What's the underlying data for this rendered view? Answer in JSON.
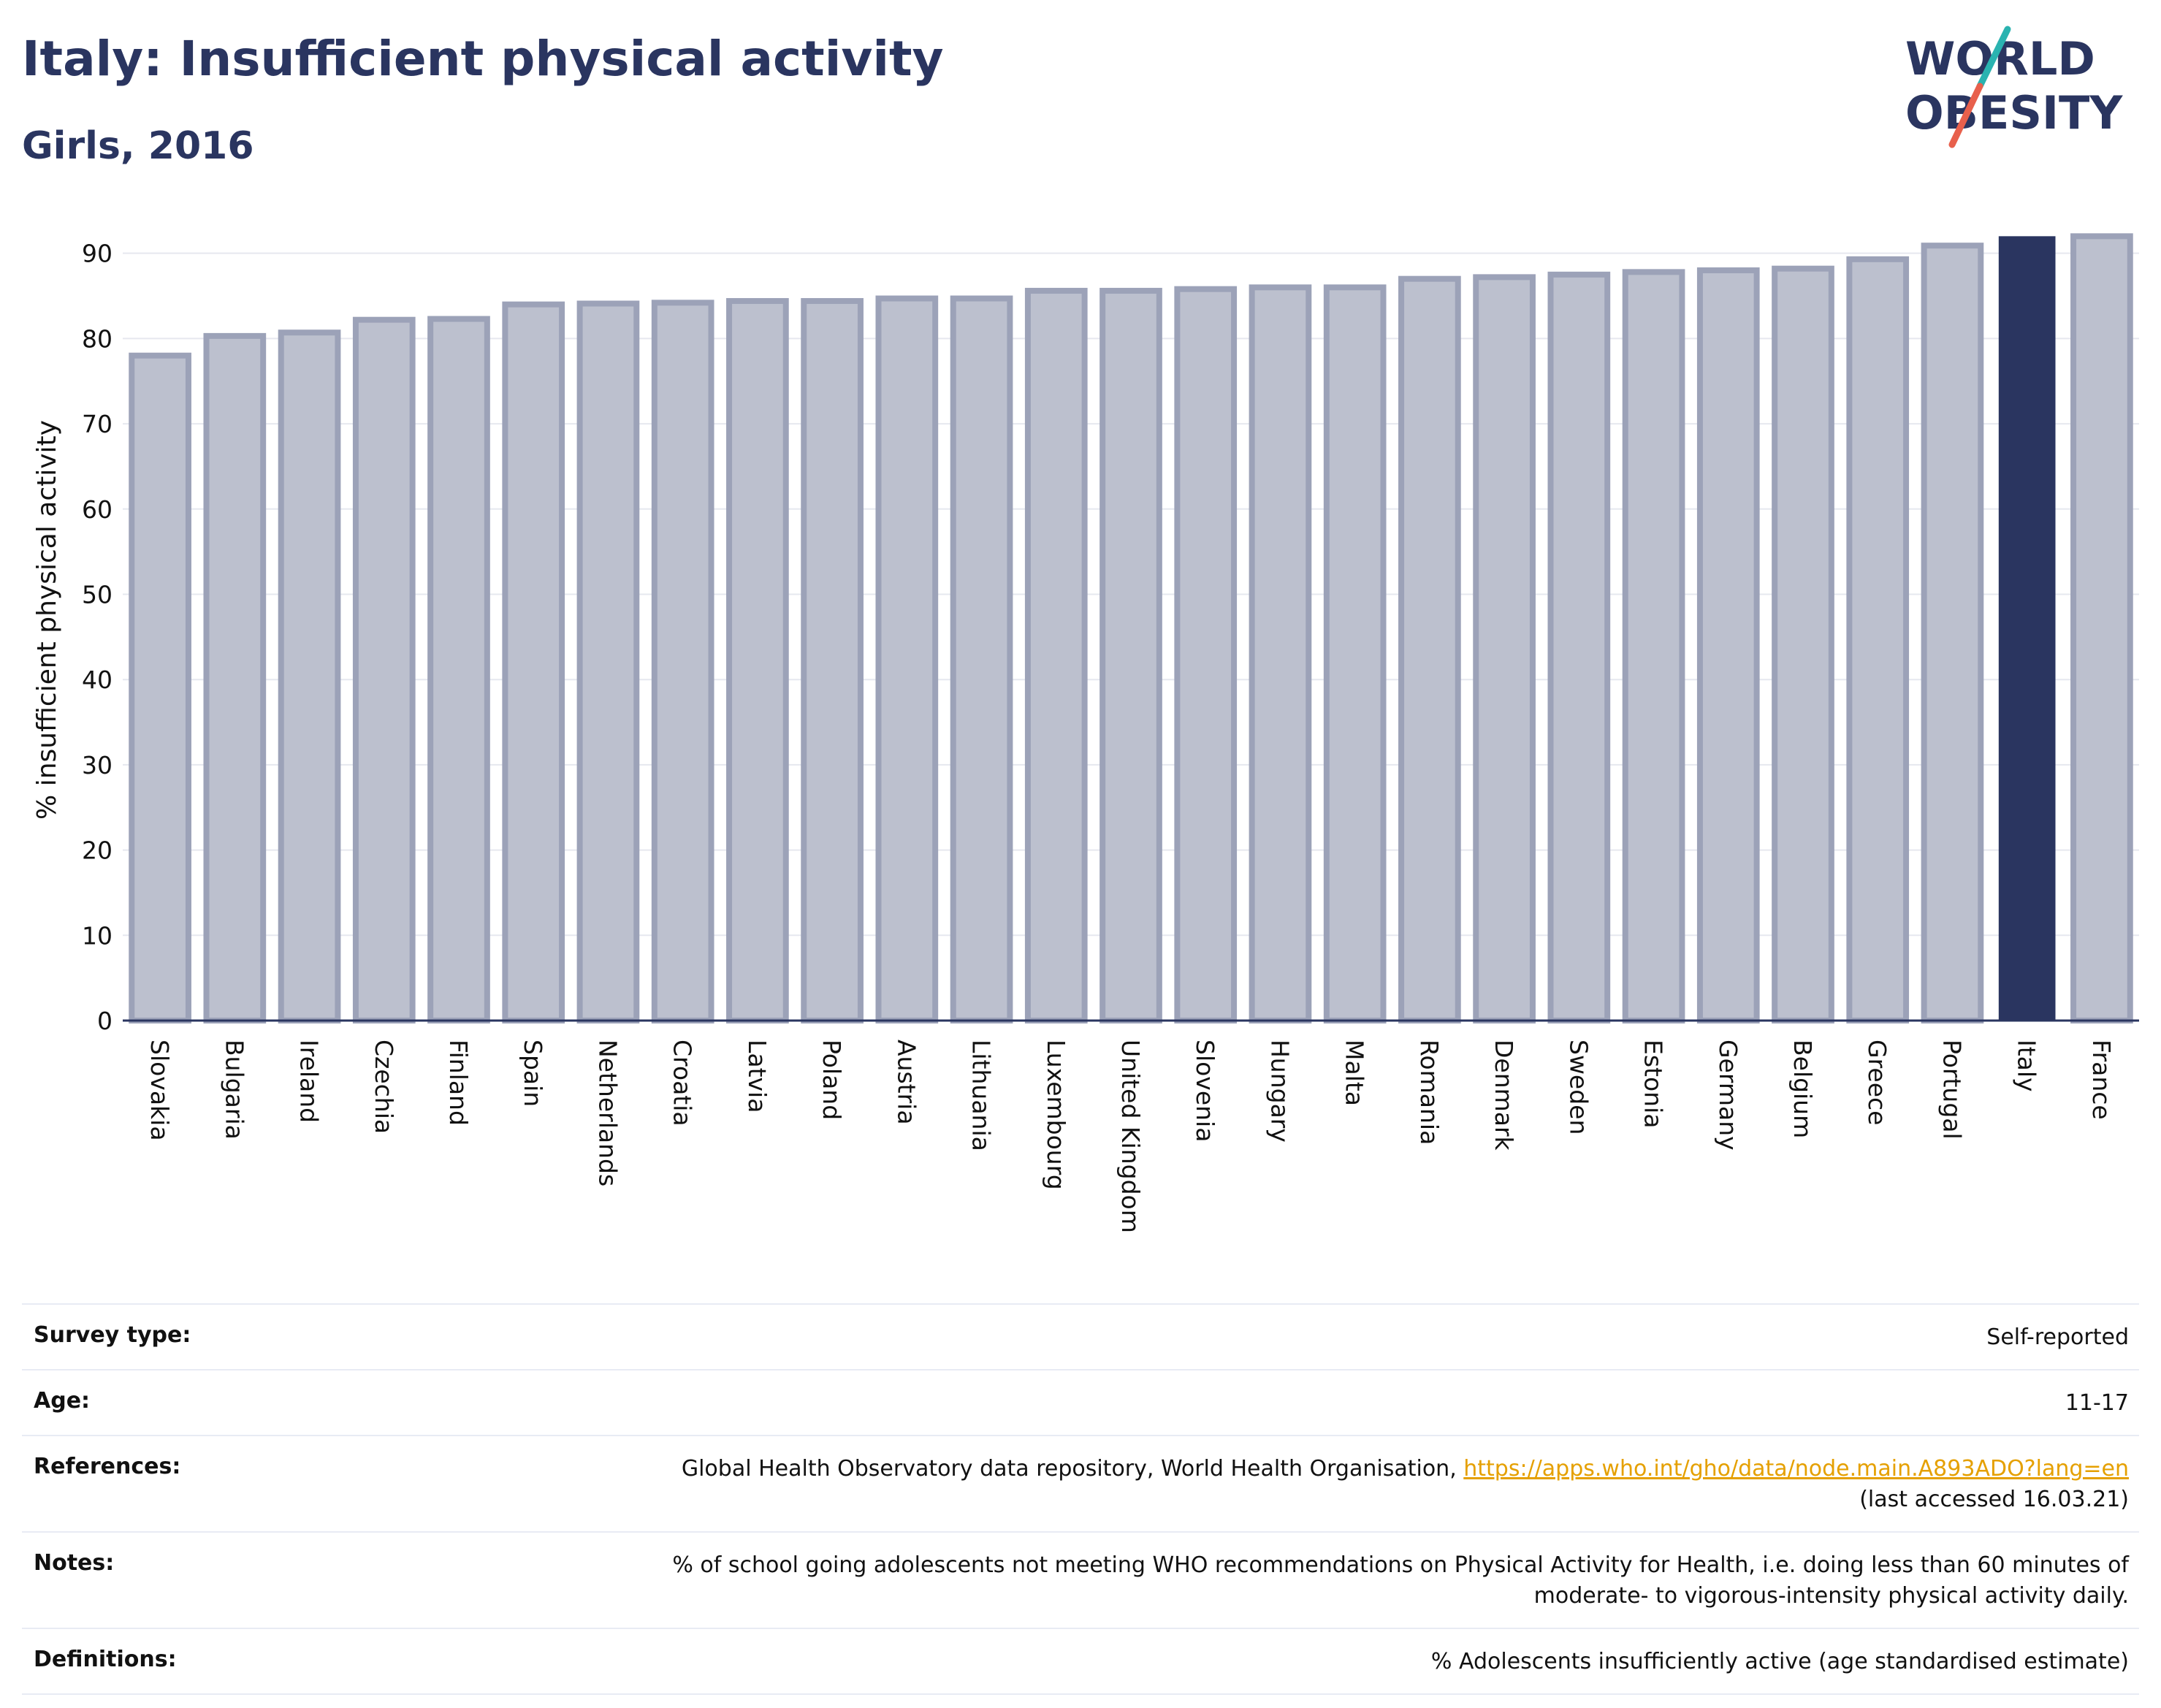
{
  "title": "Italy: Insufficient physical activity",
  "subtitle": "Girls, 2016",
  "logo": {
    "line1": "WORLD",
    "line2": "OBESITY",
    "colors": {
      "text": "#2a3560",
      "slash_top": "#2ab3b0",
      "slash_bottom": "#e8604c"
    }
  },
  "colors": {
    "bar": "#bcc0ce",
    "bar_stroke": "#9ca2b8",
    "highlight": "#2a3560",
    "grid": "#e6e8ef",
    "axis": "#2a3560",
    "link": "#e5a000"
  },
  "chart_data": {
    "type": "bar",
    "ylabel": "% insufficient physical activity",
    "xlabel": "",
    "ylim": [
      0,
      94
    ],
    "yticks": [
      0,
      10,
      20,
      30,
      40,
      50,
      60,
      70,
      80,
      90
    ],
    "grid": true,
    "highlight": "Italy",
    "categories": [
      "Slovakia",
      "Bulgaria",
      "Ireland",
      "Czechia",
      "Finland",
      "Spain",
      "Netherlands",
      "Croatia",
      "Latvia",
      "Poland",
      "Austria",
      "Lithuania",
      "Luxembourg",
      "United Kingdom",
      "Slovenia",
      "Hungary",
      "Malta",
      "Romania",
      "Denmark",
      "Sweden",
      "Estonia",
      "Germany",
      "Belgium",
      "Greece",
      "Portugal",
      "Italy",
      "France"
    ],
    "values": [
      78.0,
      80.3,
      80.7,
      82.2,
      82.3,
      84.0,
      84.1,
      84.2,
      84.4,
      84.4,
      84.7,
      84.7,
      85.6,
      85.6,
      85.8,
      86.0,
      86.0,
      87.0,
      87.2,
      87.5,
      87.8,
      88.0,
      88.2,
      89.3,
      90.9,
      92.0,
      92.0
    ]
  },
  "info": {
    "survey_type": {
      "label": "Survey type:",
      "value": "Self-reported"
    },
    "age": {
      "label": "Age:",
      "value": "11-17"
    },
    "references": {
      "label": "References:",
      "text": "Global Health Observatory data repository, World Health Organisation, ",
      "url": "https://apps.who.int/gho/data/node.main.A893ADO?lang=en",
      "accessed": "(last accessed 16.03.21)"
    },
    "notes": {
      "label": "Notes:",
      "line1": "% of school going adolescents not meeting WHO recommendations on Physical Activity for Health, i.e. doing less than 60 minutes of",
      "line2": "moderate- to vigorous-intensity physical activity daily."
    },
    "definitions": {
      "label": "Definitions:",
      "value": "% Adolescents insufficiently active (age standardised estimate)"
    }
  }
}
